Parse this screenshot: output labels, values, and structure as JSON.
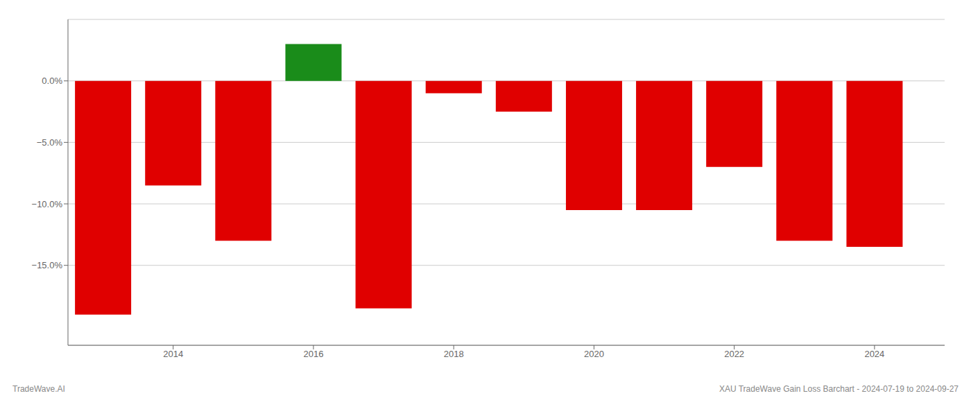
{
  "chart_data": {
    "type": "bar",
    "x": [
      2013,
      2014,
      2015,
      2016,
      2017,
      2018,
      2019,
      2020,
      2021,
      2022,
      2023,
      2024
    ],
    "values": [
      -19.0,
      -8.5,
      -13.0,
      3.0,
      -18.5,
      -1.0,
      -2.5,
      -10.5,
      -10.5,
      -7.0,
      -13.0,
      -13.5
    ],
    "colors": [
      "#e00000",
      "#e00000",
      "#e00000",
      "#1a8c1a",
      "#e00000",
      "#e00000",
      "#e00000",
      "#e00000",
      "#e00000",
      "#e00000",
      "#e00000",
      "#e00000"
    ],
    "xlim": [
      2012.5,
      2025.0
    ],
    "xticks": [
      2014,
      2016,
      2018,
      2020,
      2022,
      2024
    ],
    "ylim": [
      -21.5,
      5.0
    ],
    "yticks": [
      {
        "value": 0,
        "label": "0.0%"
      },
      {
        "value": -5,
        "label": "−5.0%"
      },
      {
        "value": -10,
        "label": "−10.0%"
      },
      {
        "value": -15,
        "label": "−15.0%"
      }
    ],
    "grid": true,
    "annotations": [
      "TradeWave.AI",
      "XAU TradeWave Gain Loss Barchart - 2024-07-19 to 2024-09-27"
    ]
  }
}
